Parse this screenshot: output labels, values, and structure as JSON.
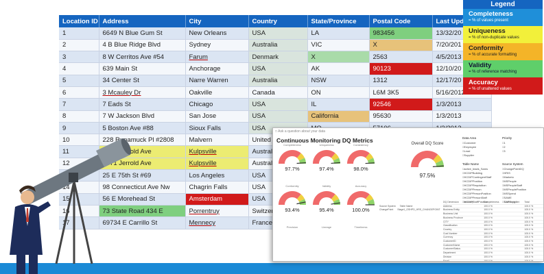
{
  "table": {
    "headers": [
      "Location ID",
      "Address",
      "City",
      "Country",
      "State/Province",
      "Postal Code",
      "Last Upd"
    ],
    "rows": [
      [
        "1",
        "6649 N Blue Gum St",
        "New Orleans",
        "USA",
        "LA",
        "983456",
        "13/32/20"
      ],
      [
        "2",
        "4 B Blue Ridge Blvd",
        "Sydney",
        "Australia",
        "VIC",
        "X",
        "7/20/201"
      ],
      [
        "3",
        "8 W Cerritos Ave #54",
        "Farum",
        "Denmark",
        "X",
        "2563",
        "4/5/2013"
      ],
      [
        "4",
        "639 Main St",
        "Anchorage",
        "USA",
        "AK",
        "90123",
        "12/10/20"
      ],
      [
        "5",
        "34 Center St",
        "Narre Warren",
        "Australia",
        "NSW",
        "1312",
        "12/17/20"
      ],
      [
        "6",
        "3 Mcauley Dr",
        "Oakville",
        "Canada",
        "ON",
        "L6M 3K5",
        "5/16/2012"
      ],
      [
        "7",
        "7 Eads St",
        "Chicago",
        "USA",
        "IL",
        "92546",
        "1/3/2013"
      ],
      [
        "8",
        "7 W Jackson Blvd",
        "San Jose",
        "USA",
        "California",
        "95630",
        "1/3/2013"
      ],
      [
        "9",
        "5 Boston Ave #88",
        "Sioux Falls",
        "USA",
        "MO",
        "57106",
        "1/3/2013"
      ],
      [
        "10",
        "228 Runamuck Pl #2808",
        "Malvern",
        "United K",
        "",
        "",
        ""
      ],
      [
        "11",
        "2371 Jerrold Ave",
        "Kulpsville",
        "Australi",
        "",
        "",
        ""
      ],
      [
        "12",
        "2371 Jerrold Ave",
        "Kulpsville",
        "Australi",
        "",
        "",
        ""
      ],
      [
        "13",
        "25 E 75th St #69",
        "Los Angeles",
        "USA",
        "",
        "",
        ""
      ],
      [
        "14",
        "98 Connecticut Ave Nw",
        "Chagrin Falls",
        "USA",
        "",
        "",
        ""
      ],
      [
        "15",
        "56 E Morehead St",
        "Amsterdam",
        "USA",
        "",
        "",
        ""
      ],
      [
        "16",
        "73 State Road 434 E",
        "Porrentruy",
        "Switzerl",
        "",
        "",
        ""
      ],
      [
        "17",
        "69734 E Carrillo St",
        "Mennecy",
        "France",
        "",
        "",
        ""
      ]
    ],
    "flag_colors": {
      "completeness": "#7fcf7f",
      "uniqueness": "#ecec72",
      "conformity": "#e7c27a",
      "validity": "#a9dba9",
      "accuracy": "#d11a1a"
    }
  },
  "legend": {
    "title": "Legend",
    "items": [
      {
        "key": "completeness",
        "title": "Completeness",
        "desc": "= % of values present",
        "color": "#1f8fd9"
      },
      {
        "key": "uniqueness",
        "title": "Uniqueness",
        "desc": "= % of non-duplicate values",
        "color": "#f2f03a"
      },
      {
        "key": "conformity",
        "title": "Conformity",
        "desc": "= % of accurate formatting",
        "color": "#f4b428"
      },
      {
        "key": "validity",
        "title": "Validity",
        "desc": "= % of reference matching",
        "color": "#5fcf6a"
      },
      {
        "key": "accuracy",
        "title": "Accuracy",
        "desc": "= % of unaltered values",
        "color": "#d11a1a"
      }
    ]
  },
  "dashboard": {
    "qa_prompt": "Ask a question about your data",
    "title": "Continuous Monitoring DQ Metrics",
    "gauges": [
      {
        "label": "Completeness",
        "value": "97.7%",
        "fraction": 0.977
      },
      {
        "label": "Uniqueness",
        "value": "97.4%",
        "fraction": 0.974
      },
      {
        "label": "Consistency",
        "value": "98.0%",
        "fraction": 0.98
      },
      {
        "label": "Conformity",
        "value": "93.4%",
        "fraction": 0.934
      },
      {
        "label": "Validity",
        "value": "95.4%",
        "fraction": 0.954
      },
      {
        "label": "Accuracy",
        "value": "100.0%",
        "fraction": 1.0
      },
      {
        "label": "Precision",
        "value": "",
        "fraction": 0
      },
      {
        "label": "Lineage",
        "value": "",
        "fraction": 0
      },
      {
        "label": "Timeliness",
        "value": "",
        "fraction": 0
      }
    ],
    "overall": {
      "label": "Overall DQ Score",
      "value": "97.5%",
      "fraction": 0.975
    },
    "filters": {
      "data_area": {
        "title": "Data Area",
        "items": [
          "Customer",
          "Employee",
          "Lead",
          "Supplier"
        ]
      },
      "priority": {
        "title": "Priority",
        "items": [
          "1",
          "2",
          "3"
        ]
      },
      "table_name": {
        "title": "Table Name",
        "items": [
          "active_leads_Sams",
          "HCDIPBuilding",
          "HCDIPContingentStaff",
          "HCDIPPosition",
          "HCDIPRequisition",
          "HCDIPPerson",
          "HCDIPPersonPosition",
          "HCDIPPersonStaff",
          "HCDIPStaffPosition"
        ]
      },
      "source_system": {
        "title": "Source System",
        "items": [
          "ChangePointDQ",
          "HRIS",
          "Marketo",
          "MSPeople",
          "MSPeopleStaff",
          "MSPeoplePosition",
          "MSSpend",
          "SAME",
          "SAPSupplier"
        ]
      }
    },
    "source_table": {
      "headers": [
        "Source System",
        "Table Name"
      ],
      "rows": [
        [
          "ChangePoint",
          "Stage1_OSHPD_HRS_CHANGEPOINT"
        ]
      ]
    },
    "grid_headers": [
      "DQ Dimension",
      "Accuracy",
      "Completeness",
      "Conformity",
      "Total"
    ],
    "grid_rows": [
      [
        "Address",
        "",
        "100.0 %",
        "",
        "100.0 %"
      ],
      [
        "Business Entity",
        "",
        "100.0 %",
        "",
        "100.0 %"
      ],
      [
        "Business Unit",
        "",
        "100.0 %",
        "",
        "100.0 %"
      ],
      [
        "Business Province",
        "",
        "100.0 %",
        "",
        "100.0 %"
      ],
      [
        "CITY",
        "",
        "100.0 %",
        "",
        "100.0 %"
      ],
      [
        "Classification",
        "",
        "100.0 %",
        "",
        "100.0 %"
      ],
      [
        "Country",
        "",
        "100.0 %",
        "",
        "100.0 %"
      ],
      [
        "Cust Number",
        "",
        "100.0 %",
        "",
        "100.0 %"
      ],
      [
        "Currency",
        "",
        "100.0 %",
        "",
        "100.0 %"
      ],
      [
        "CustomerID",
        "",
        "100.0 %",
        "",
        "100.0 %"
      ],
      [
        "CustomerName",
        "",
        "100.0 %",
        "",
        "100.0 %"
      ],
      [
        "CustomerStatus",
        "",
        "100.0 %",
        "",
        "100.0 %"
      ],
      [
        "Department",
        "",
        "100.0 %",
        "",
        "100.0 %"
      ],
      [
        "Division",
        "",
        "100.0 %",
        "",
        "100.0 %"
      ],
      [
        "Email",
        "",
        "100.0 %",
        "",
        "100.0 %"
      ],
      [
        "Total",
        "",
        "",
        "",
        "100.0 %"
      ]
    ],
    "source_footer": "SW_FINALT_OSHPD_HRS_CHANGEPOINT"
  }
}
